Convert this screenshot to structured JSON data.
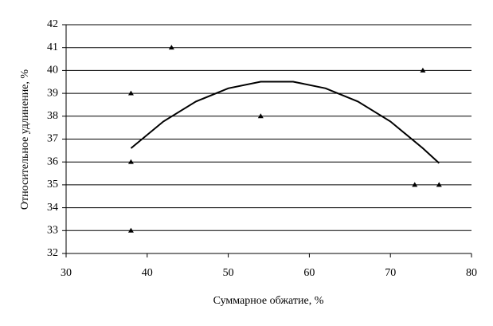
{
  "chart_data": {
    "type": "scatter",
    "x_label": "Суммарное обжатие, %",
    "y_label": "Относительное удлинение, %",
    "xlim": [
      30,
      80
    ],
    "xticks": [
      30,
      40,
      50,
      60,
      70,
      80
    ],
    "ylim": [
      32,
      42
    ],
    "yticks": [
      32,
      33,
      34,
      35,
      36,
      37,
      38,
      39,
      40,
      41,
      42
    ],
    "grid": true,
    "series": [
      {
        "type": "scatter",
        "color": "#000000",
        "x": [
          38,
          38,
          38,
          43,
          54,
          74,
          73,
          76
        ],
        "values": [
          39,
          36,
          33,
          41,
          38,
          40,
          35,
          35
        ]
      },
      {
        "type": "line",
        "color": "#000000",
        "x": [
          38,
          42,
          46,
          50,
          54,
          58,
          62,
          66,
          70,
          74,
          76
        ],
        "values": [
          36.6,
          37.77,
          38.64,
          39.22,
          39.51,
          39.51,
          39.22,
          38.64,
          37.77,
          36.6,
          35.95
        ]
      }
    ]
  }
}
